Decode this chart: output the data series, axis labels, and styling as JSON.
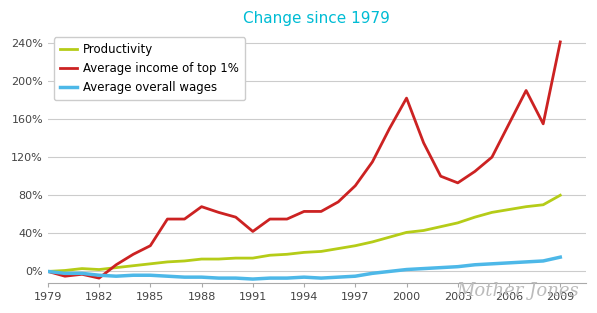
{
  "title": "Change since 1979",
  "title_color": "#00bcd4",
  "background_color": "#ffffff",
  "ylabel": "",
  "xlabel": "",
  "xlim": [
    1979,
    2010.5
  ],
  "ylim": [
    -0.12,
    2.52
  ],
  "yticks": [
    0.0,
    0.4,
    0.8,
    1.2,
    1.6,
    2.0,
    2.4
  ],
  "ytick_labels": [
    "0%",
    "40%",
    "80%",
    "120%",
    "160%",
    "200%",
    "240%"
  ],
  "xticks": [
    1979,
    1982,
    1985,
    1988,
    1991,
    1994,
    1997,
    2000,
    2003,
    2006,
    2009
  ],
  "watermark": "Mother Jones",
  "watermark_color": "#bbbbbb",
  "productivity": {
    "years": [
      1979,
      1980,
      1981,
      1982,
      1983,
      1984,
      1985,
      1986,
      1987,
      1988,
      1989,
      1990,
      1991,
      1992,
      1993,
      1994,
      1995,
      1996,
      1997,
      1998,
      1999,
      2000,
      2001,
      2002,
      2003,
      2004,
      2005,
      2006,
      2007,
      2008,
      2009
    ],
    "values": [
      0.0,
      0.01,
      0.03,
      0.02,
      0.04,
      0.06,
      0.08,
      0.1,
      0.11,
      0.13,
      0.13,
      0.14,
      0.14,
      0.17,
      0.18,
      0.2,
      0.21,
      0.24,
      0.27,
      0.31,
      0.36,
      0.41,
      0.43,
      0.47,
      0.51,
      0.57,
      0.62,
      0.65,
      0.68,
      0.7,
      0.8
    ],
    "color": "#b5cc18",
    "linewidth": 2.0,
    "label": "Productivity"
  },
  "top1pct": {
    "years": [
      1979,
      1980,
      1981,
      1982,
      1983,
      1984,
      1985,
      1986,
      1987,
      1988,
      1989,
      1990,
      1991,
      1992,
      1993,
      1994,
      1995,
      1996,
      1997,
      1998,
      1999,
      2000,
      2001,
      2002,
      2003,
      2004,
      2005,
      2006,
      2007,
      2008,
      2009
    ],
    "values": [
      0.0,
      -0.05,
      -0.03,
      -0.07,
      0.07,
      0.18,
      0.27,
      0.55,
      0.55,
      0.68,
      0.62,
      0.57,
      0.42,
      0.55,
      0.55,
      0.63,
      0.63,
      0.73,
      0.9,
      1.15,
      1.5,
      1.82,
      1.35,
      1.0,
      0.93,
      1.05,
      1.2,
      1.55,
      1.9,
      1.55,
      2.41
    ],
    "color": "#cc2222",
    "linewidth": 2.0,
    "label": "Average income of top 1%"
  },
  "wages": {
    "years": [
      1979,
      1980,
      1981,
      1982,
      1983,
      1984,
      1985,
      1986,
      1987,
      1988,
      1989,
      1990,
      1991,
      1992,
      1993,
      1994,
      1995,
      1996,
      1997,
      1998,
      1999,
      2000,
      2001,
      2002,
      2003,
      2004,
      2005,
      2006,
      2007,
      2008,
      2009
    ],
    "values": [
      0.0,
      -0.02,
      -0.02,
      -0.04,
      -0.05,
      -0.04,
      -0.04,
      -0.05,
      -0.06,
      -0.06,
      -0.07,
      -0.07,
      -0.08,
      -0.07,
      -0.07,
      -0.06,
      -0.07,
      -0.06,
      -0.05,
      -0.02,
      0.0,
      0.02,
      0.03,
      0.04,
      0.05,
      0.07,
      0.08,
      0.09,
      0.1,
      0.11,
      0.15
    ],
    "color": "#4db8e8",
    "linewidth": 2.5,
    "label": "Average overall wages"
  },
  "legend_loc": "upper left",
  "title_fontsize": 11,
  "tick_fontsize": 8,
  "legend_fontsize": 8.5
}
